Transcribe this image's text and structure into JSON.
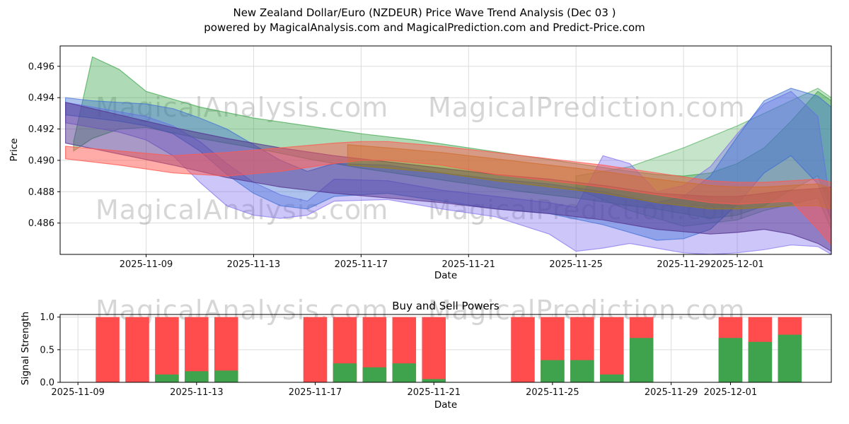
{
  "figure": {
    "title_line1": "New Zealand Dollar/Euro (NZDEUR) Price Wave Trend Analysis (Dec 03 )",
    "title_line2": "powered by MagicalAnalysis.com and MagicalPrediction.com and Predict-Price.com",
    "background": "#ffffff"
  },
  "watermarks": {
    "left": "MagicalAnalysis.com",
    "right": "MagicalPrediction.com",
    "color": "#808080"
  },
  "chart_data": [
    {
      "type": "area",
      "name": "price-wave-trend",
      "xlabel": "Date",
      "ylabel": "Price",
      "x_unit_note": "x values are days after 2025-11-06",
      "xlim": [
        -0.2,
        28.5
      ],
      "ylim": [
        0.484,
        0.4973
      ],
      "grid": true,
      "yticks": {
        "values": [
          0.486,
          0.488,
          0.49,
          0.492,
          0.494,
          0.496
        ],
        "labels": [
          "0.486",
          "0.488",
          "0.490",
          "0.492",
          "0.494",
          "0.496"
        ]
      },
      "xticks": {
        "values": [
          3,
          7,
          11,
          15,
          19,
          23,
          25
        ],
        "labels": [
          "2025-11-09",
          "2025-11-13",
          "2025-11-17",
          "2025-11-21",
          "2025-11-25",
          "2025-11-29",
          "2025-12-01"
        ]
      },
      "bands": [
        {
          "name": "green-fan-right",
          "color": "#2e9e3e",
          "alpha": 0.28,
          "x": [
            19,
            21,
            23,
            25,
            26,
            27,
            28,
            28.5
          ],
          "upper": [
            0.489,
            0.4896,
            0.4908,
            0.4922,
            0.493,
            0.4938,
            0.4946,
            0.494
          ],
          "lower": [
            0.4882,
            0.4868,
            0.4858,
            0.4862,
            0.4868,
            0.4872,
            0.4876,
            0.4856
          ]
        },
        {
          "name": "green-main",
          "color": "#2e9e3e",
          "alpha": 0.38,
          "x": [
            0.3,
            1,
            2,
            3,
            5,
            7,
            9,
            11,
            13,
            15,
            17,
            19,
            21,
            22,
            23,
            24,
            25,
            26,
            27,
            28,
            28.5
          ],
          "upper": [
            0.4912,
            0.4966,
            0.4958,
            0.4944,
            0.4934,
            0.4927,
            0.4922,
            0.4917,
            0.4913,
            0.4908,
            0.4903,
            0.4898,
            0.4893,
            0.4891,
            0.489,
            0.4892,
            0.4898,
            0.4908,
            0.4925,
            0.4944,
            0.4938
          ],
          "lower": [
            0.4906,
            0.4914,
            0.492,
            0.4921,
            0.4914,
            0.4908,
            0.4901,
            0.4895,
            0.489,
            0.4885,
            0.488,
            0.4876,
            0.4871,
            0.4869,
            0.4866,
            0.4863,
            0.4865,
            0.4871,
            0.4881,
            0.489,
            0.4868
          ]
        },
        {
          "name": "lavender",
          "color": "#7b68ee",
          "alpha": 0.38,
          "x": [
            0,
            1,
            2,
            3,
            4,
            5,
            6,
            7,
            8,
            9,
            10,
            12,
            14,
            16,
            18,
            19,
            20,
            21,
            22,
            23,
            24,
            25,
            26,
            27,
            28,
            28.5
          ],
          "upper": [
            0.4937,
            0.4934,
            0.4931,
            0.4928,
            0.4922,
            0.4912,
            0.4898,
            0.4886,
            0.4878,
            0.4874,
            0.4888,
            0.4887,
            0.4881,
            0.4877,
            0.4873,
            0.487,
            0.4903,
            0.4898,
            0.488,
            0.4884,
            0.4896,
            0.4917,
            0.4936,
            0.4944,
            0.4928,
            0.4868
          ],
          "lower": [
            0.4924,
            0.4921,
            0.4918,
            0.4913,
            0.4903,
            0.4886,
            0.4871,
            0.4865,
            0.4863,
            0.4865,
            0.4874,
            0.4875,
            0.4869,
            0.4864,
            0.4853,
            0.4842,
            0.4844,
            0.4847,
            0.4844,
            0.4841,
            0.484,
            0.4841,
            0.4843,
            0.4846,
            0.4845,
            0.484
          ]
        },
        {
          "name": "blue-main",
          "color": "#3b6fd4",
          "alpha": 0.42,
          "x": [
            0,
            1,
            2,
            3,
            4,
            5,
            6,
            7,
            8,
            9,
            10,
            12,
            14,
            16,
            18,
            20,
            22,
            23,
            24,
            25,
            26,
            27,
            28,
            28.5
          ],
          "upper": [
            0.494,
            0.4938,
            0.4937,
            0.4936,
            0.4933,
            0.4927,
            0.492,
            0.491,
            0.49,
            0.4893,
            0.4898,
            0.4897,
            0.4892,
            0.4888,
            0.4885,
            0.488,
            0.4873,
            0.4877,
            0.489,
            0.4915,
            0.4938,
            0.4946,
            0.4941,
            0.4934
          ],
          "lower": [
            0.4929,
            0.4927,
            0.4925,
            0.4922,
            0.4917,
            0.4906,
            0.4891,
            0.4879,
            0.4871,
            0.4869,
            0.4877,
            0.4879,
            0.4874,
            0.4869,
            0.4866,
            0.4859,
            0.4849,
            0.485,
            0.4856,
            0.4872,
            0.4892,
            0.4903,
            0.4885,
            0.4862
          ]
        },
        {
          "name": "purple",
          "color": "#53338e",
          "alpha": 0.5,
          "x": [
            0,
            2,
            4,
            6,
            8,
            10,
            12,
            14,
            16,
            18,
            20,
            22,
            24,
            25,
            26,
            27,
            28,
            28.5
          ],
          "upper": [
            0.4937,
            0.4929,
            0.4921,
            0.4914,
            0.4908,
            0.4903,
            0.4899,
            0.4895,
            0.4891,
            0.4888,
            0.4884,
            0.4879,
            0.4877,
            0.4877,
            0.4879,
            0.4881,
            0.4882,
            0.4883
          ],
          "lower": [
            0.4911,
            0.4904,
            0.4897,
            0.4889,
            0.4883,
            0.4879,
            0.4876,
            0.4873,
            0.4869,
            0.4866,
            0.4862,
            0.4856,
            0.4853,
            0.4854,
            0.4856,
            0.4853,
            0.4847,
            0.4842
          ]
        },
        {
          "name": "olive",
          "color": "#a08008",
          "alpha": 0.45,
          "x": [
            10.5,
            12,
            14,
            16,
            18,
            20,
            22,
            24,
            25,
            26,
            27,
            28,
            28.5
          ],
          "upper": [
            0.491,
            0.4908,
            0.4905,
            0.4901,
            0.4897,
            0.4893,
            0.4888,
            0.4884,
            0.4883,
            0.4883,
            0.4884,
            0.4885,
            0.4882
          ],
          "lower": [
            0.4897,
            0.4895,
            0.4892,
            0.4887,
            0.4883,
            0.4879,
            0.4873,
            0.4869,
            0.4869,
            0.487,
            0.4871,
            0.4871,
            0.4869
          ]
        },
        {
          "name": "salmon",
          "color": "#ff5a52",
          "alpha": 0.5,
          "x": [
            0,
            2,
            4,
            6,
            8,
            10,
            11,
            12,
            14,
            16,
            18,
            20,
            22,
            24,
            25,
            26,
            27,
            28,
            28.5
          ],
          "upper": [
            0.4909,
            0.4906,
            0.4903,
            0.4905,
            0.4908,
            0.4911,
            0.4912,
            0.4912,
            0.4909,
            0.4905,
            0.4901,
            0.4897,
            0.4892,
            0.4887,
            0.4886,
            0.4886,
            0.4887,
            0.4888,
            0.4886
          ],
          "lower": [
            0.4901,
            0.4897,
            0.4892,
            0.489,
            0.4893,
            0.4898,
            0.49,
            0.49,
            0.4897,
            0.4891,
            0.4887,
            0.4883,
            0.4878,
            0.4873,
            0.4872,
            0.4873,
            0.4874,
            0.4856,
            0.4846
          ]
        }
      ]
    },
    {
      "type": "bar",
      "name": "buy-sell-powers",
      "title": "Buy and Sell Powers",
      "xlabel": "Date",
      "ylabel": "Signal Strength",
      "x_unit_note": "x values are days after 2025-11-06",
      "xlim": [
        2.4,
        28.4
      ],
      "ylim": [
        0,
        1.04
      ],
      "grid": true,
      "yticks": {
        "values": [
          0,
          0.5,
          1
        ],
        "labels": [
          "0.0",
          "0.5",
          "1.0"
        ]
      },
      "xticks": {
        "values": [
          3,
          7,
          11,
          15,
          19,
          23,
          25
        ],
        "labels": [
          "2025-11-09",
          "2025-11-13",
          "2025-11-17",
          "2025-11-21",
          "2025-11-25",
          "2025-11-29",
          "2025-12-01"
        ]
      },
      "bar_width_days": 0.8,
      "colors": {
        "sell": "#ff4c4c",
        "buy": "#3fa34d"
      },
      "series": [
        {
          "name": "Sell Power",
          "color": "#ff4c4c"
        },
        {
          "name": "Buy Power",
          "color": "#3fa34d"
        }
      ],
      "bars": [
        {
          "date": "2025-11-10",
          "day": 4,
          "sell": 1.0,
          "buy": 0.0
        },
        {
          "date": "2025-11-11",
          "day": 5,
          "sell": 1.0,
          "buy": 0.0
        },
        {
          "date": "2025-11-12",
          "day": 6,
          "sell": 1.0,
          "buy": 0.12
        },
        {
          "date": "2025-11-13",
          "day": 7,
          "sell": 1.0,
          "buy": 0.17
        },
        {
          "date": "2025-11-14",
          "day": 8,
          "sell": 1.0,
          "buy": 0.18
        },
        {
          "date": "2025-11-17",
          "day": 11,
          "sell": 1.0,
          "buy": 0.0
        },
        {
          "date": "2025-11-18",
          "day": 12,
          "sell": 1.0,
          "buy": 0.29
        },
        {
          "date": "2025-11-19",
          "day": 13,
          "sell": 1.0,
          "buy": 0.23
        },
        {
          "date": "2025-11-20",
          "day": 14,
          "sell": 1.0,
          "buy": 0.29
        },
        {
          "date": "2025-11-21",
          "day": 15,
          "sell": 1.0,
          "buy": 0.05
        },
        {
          "date": "2025-11-24",
          "day": 18,
          "sell": 1.0,
          "buy": 0.0
        },
        {
          "date": "2025-11-25",
          "day": 19,
          "sell": 1.0,
          "buy": 0.34
        },
        {
          "date": "2025-11-26",
          "day": 20,
          "sell": 1.0,
          "buy": 0.34
        },
        {
          "date": "2025-11-27",
          "day": 21,
          "sell": 1.0,
          "buy": 0.12
        },
        {
          "date": "2025-11-28",
          "day": 22,
          "sell": 1.0,
          "buy": 0.68
        },
        {
          "date": "2025-12-01",
          "day": 25,
          "sell": 1.0,
          "buy": 0.68
        },
        {
          "date": "2025-12-02",
          "day": 26,
          "sell": 1.0,
          "buy": 0.62
        },
        {
          "date": "2025-12-03",
          "day": 27,
          "sell": 1.0,
          "buy": 0.73
        }
      ]
    }
  ]
}
